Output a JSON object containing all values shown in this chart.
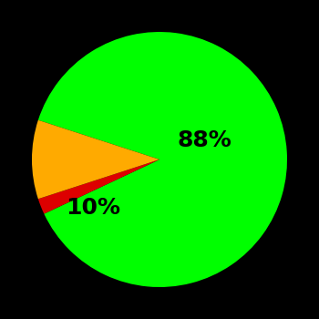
{
  "slices": [
    88,
    2,
    10
  ],
  "colors": [
    "#00ff00",
    "#dd0000",
    "#ffaa00"
  ],
  "labels": [
    "88%",
    "",
    "10%"
  ],
  "background_color": "#000000",
  "label_fontsize": 18,
  "label_fontweight": "bold",
  "startangle": 162,
  "figsize": [
    3.5,
    3.5
  ],
  "dpi": 100
}
